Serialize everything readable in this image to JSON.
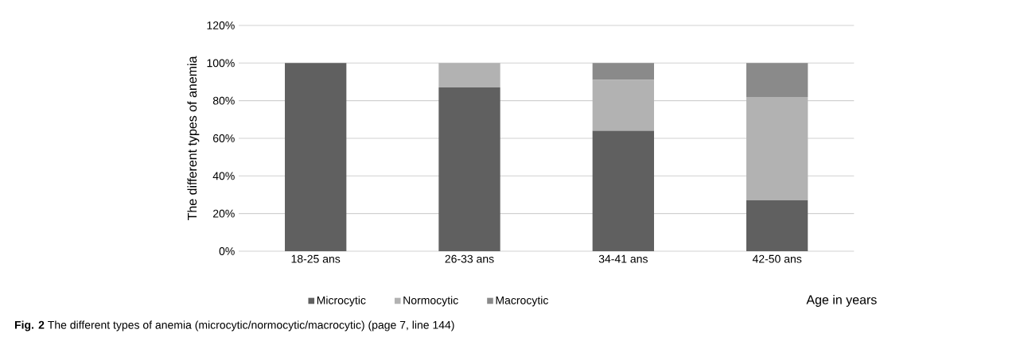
{
  "chart_data": {
    "type": "bar",
    "stacked": true,
    "ylabel": "The different types of anemia",
    "xlabel": "Age in years",
    "categories": [
      "18-25 ans",
      "26-33 ans",
      "34-41 ans",
      "42-50 ans"
    ],
    "series": [
      {
        "name": "Microcytic",
        "color": "#606060",
        "values": [
          100,
          87,
          64,
          27
        ]
      },
      {
        "name": "Normocytic",
        "color": "#b2b2b2",
        "values": [
          0,
          13,
          27,
          55
        ]
      },
      {
        "name": "Macrocytic",
        "color": "#8a8a8a",
        "values": [
          0,
          0,
          9,
          18
        ]
      }
    ],
    "ylim": [
      0,
      120
    ],
    "yticks": [
      {
        "value": 0,
        "label": "0%"
      },
      {
        "value": 20,
        "label": "20%"
      },
      {
        "value": 40,
        "label": "40%"
      },
      {
        "value": 60,
        "label": "60%"
      },
      {
        "value": 80,
        "label": "80%"
      },
      {
        "value": 100,
        "label": "100%"
      },
      {
        "value": 120,
        "label": "120%"
      }
    ],
    "grid": "y",
    "legend": "bottom",
    "annotations": [
      "**Fig. 2** The different types of anemia (microcytic/normocytic/macrocytic) (page 7, line 144)"
    ]
  }
}
